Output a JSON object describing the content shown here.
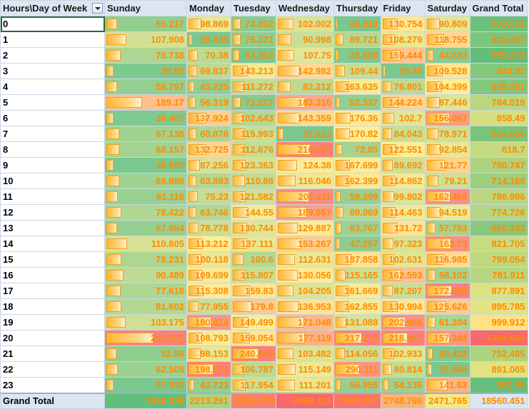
{
  "pivot": {
    "corner_label": "Hours\\Day of Week",
    "columns": [
      "Sunday",
      "Monday",
      "Tuesday",
      "Wednesday",
      "Thursday",
      "Friday",
      "Saturday",
      "Grand Total"
    ],
    "grand_total_label": "Grand Total",
    "rows": [
      {
        "label": "0",
        "values": [
          "55.217",
          "98.869",
          "74.002",
          "102.002",
          "26.918",
          "130.754",
          "90.809",
          "578.571"
        ]
      },
      {
        "label": "1",
        "values": [
          "107.908",
          "28.435",
          "75.371",
          "90.998",
          "89.721",
          "108.279",
          "118.755",
          "619.467"
        ]
      },
      {
        "label": "2",
        "values": [
          "76.738",
          "70.38",
          "63.262",
          "107.75",
          "33.608",
          "159.444",
          "44.033",
          "555.215"
        ]
      },
      {
        "label": "3",
        "values": [
          "39.52",
          "69.837",
          "143.213",
          "142.982",
          "109.44",
          "29.85",
          "109.528",
          "644.37"
        ]
      },
      {
        "label": "4",
        "values": [
          "56.757",
          "43.225",
          "111.272",
          "82.212",
          "163.635",
          "76.801",
          "104.399",
          "638.301"
        ]
      },
      {
        "label": "5",
        "values": [
          "189.17",
          "56.319",
          "71.217",
          "183.316",
          "52.327",
          "144.224",
          "87.446",
          "784.019"
        ]
      },
      {
        "label": "6",
        "values": [
          "39.407",
          "137.924",
          "102.643",
          "143.359",
          "176.36",
          "102.7",
          "156.097",
          "858.49"
        ]
      },
      {
        "label": "7",
        "values": [
          "67.138",
          "60.078",
          "115.993",
          "37.613",
          "170.82",
          "84.043",
          "78.971",
          "614.656"
        ]
      },
      {
        "label": "8",
        "values": [
          "68.157",
          "132.725",
          "112.676",
          "216.887",
          "72.85",
          "122.551",
          "92.854",
          "818.7"
        ]
      },
      {
        "label": "9",
        "values": [
          "36.587",
          "87.256",
          "123.363",
          "124.38",
          "167.699",
          "89.692",
          "121.77",
          "750.747"
        ]
      },
      {
        "label": "10",
        "values": [
          "66.888",
          "63.883",
          "110.88",
          "116.046",
          "162.399",
          "114.862",
          "79.21",
          "714.168"
        ]
      },
      {
        "label": "11",
        "values": [
          "61.116",
          "75.23",
          "121.582",
          "207.411",
          "59.399",
          "99.802",
          "162.456",
          "786.996"
        ]
      },
      {
        "label": "12",
        "values": [
          "78.422",
          "63.746",
          "144.55",
          "189.957",
          "89.069",
          "114.463",
          "94.519",
          "774.726"
        ]
      },
      {
        "label": "13",
        "values": [
          "57.654",
          "78.778",
          "130.744",
          "129.887",
          "63.767",
          "131.72",
          "57.793",
          "650.343"
        ]
      },
      {
        "label": "14",
        "values": [
          "110.805",
          "113.212",
          "137.111",
          "153.267",
          "47.257",
          "97.323",
          "162.73",
          "821.705"
        ]
      },
      {
        "label": "15",
        "values": [
          "78.231",
          "100.118",
          "100.6",
          "112.631",
          "187.858",
          "102.631",
          "116.985",
          "799.054"
        ]
      },
      {
        "label": "16",
        "values": [
          "90.489",
          "109.699",
          "115.807",
          "130.056",
          "115.165",
          "162.593",
          "58.102",
          "781.911"
        ]
      },
      {
        "label": "17",
        "values": [
          "77.618",
          "115.308",
          "159.83",
          "104.205",
          "161.669",
          "87.207",
          "172.054",
          "877.891"
        ]
      },
      {
        "label": "18",
        "values": [
          "81.602",
          "77.955",
          "179.8",
          "136.953",
          "162.855",
          "130.994",
          "125.626",
          "895.785"
        ]
      },
      {
        "label": "19",
        "values": [
          "103.175",
          "180.814",
          "149.499",
          "171.048",
          "131.088",
          "202.904",
          "61.384",
          "999.912"
        ]
      },
      {
        "label": "20",
        "values": [
          "251.252",
          "108.793",
          "159.054",
          "177.119",
          "317.275",
          "218.047",
          "157.344",
          "1388.884"
        ]
      },
      {
        "label": "21",
        "values": [
          "52.59",
          "98.153",
          "240.869",
          "103.482",
          "114.056",
          "102.933",
          "40.402",
          "752.485"
        ]
      },
      {
        "label": "22",
        "values": [
          "62.505",
          "198.831",
          "106.787",
          "115.149",
          "290.111",
          "80.814",
          "36.868",
          "891.065"
        ]
      },
      {
        "label": "23",
        "values": [
          "37.392",
          "43.723",
          "117.954",
          "111.201",
          "56.955",
          "54.135",
          "141.63",
          "562.99"
        ]
      }
    ],
    "grand_total": [
      "1946.338",
      "2213.291",
      "2968.079",
      "3069.411",
      "3022.301",
      "2748.766",
      "2471.765",
      "18560.451"
    ]
  }
}
